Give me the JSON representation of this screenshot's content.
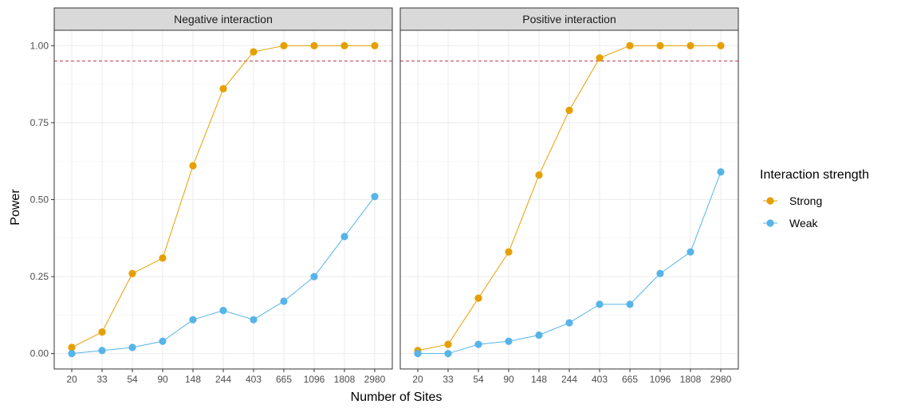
{
  "chart_data": {
    "type": "line",
    "xlabel": "Number of Sites",
    "ylabel": "Power",
    "categories": [
      "20",
      "33",
      "54",
      "90",
      "148",
      "244",
      "403",
      "665",
      "1096",
      "1808",
      "2980"
    ],
    "ylim": [
      -0.05,
      1.05
    ],
    "yticks": [
      0.0,
      0.25,
      0.5,
      0.75,
      1.0
    ],
    "ytick_labels": [
      "0.00",
      "0.25",
      "0.50",
      "0.75",
      "1.00"
    ],
    "reference_line": {
      "y": 0.95,
      "style": "dashed",
      "color": "#c0394b"
    },
    "grid": true,
    "legend": {
      "title": "Interaction strength",
      "placement": "right",
      "entries": [
        "Strong",
        "Weak"
      ]
    },
    "colors": {
      "Strong": "#E69F00",
      "Weak": "#56B4E9"
    },
    "panels": [
      {
        "title": "Negative interaction",
        "series": [
          {
            "name": "Strong",
            "values": [
              0.02,
              0.07,
              0.26,
              0.31,
              0.61,
              0.86,
              0.98,
              1.0,
              1.0,
              1.0,
              1.0
            ]
          },
          {
            "name": "Weak",
            "values": [
              0.0,
              0.01,
              0.02,
              0.04,
              0.11,
              0.14,
              0.11,
              0.17,
              0.25,
              0.38,
              0.51
            ]
          }
        ]
      },
      {
        "title": "Positive interaction",
        "series": [
          {
            "name": "Strong",
            "values": [
              0.01,
              0.03,
              0.18,
              0.33,
              0.58,
              0.79,
              0.96,
              1.0,
              1.0,
              1.0,
              1.0
            ]
          },
          {
            "name": "Weak",
            "values": [
              0.0,
              0.0,
              0.03,
              0.04,
              0.06,
              0.1,
              0.16,
              0.16,
              0.26,
              0.33,
              0.59
            ]
          }
        ]
      }
    ]
  }
}
